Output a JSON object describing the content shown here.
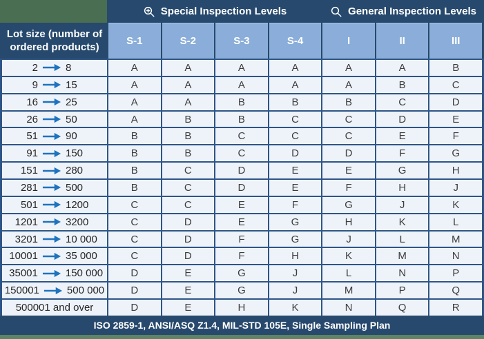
{
  "chart_data": {
    "type": "table",
    "section_headers": {
      "special": {
        "icon": "zoom-in-magnifier-icon",
        "label": "Special Inspection Levels"
      },
      "general": {
        "icon": "magnifier-icon",
        "label": "General Inspection Levels"
      }
    },
    "lot_column_header": "Lot size (number of ordered products)",
    "level_columns": [
      "S-1",
      "S-2",
      "S-3",
      "S-4",
      "I",
      "II",
      "III"
    ],
    "rows": [
      {
        "from": "2",
        "to": "8",
        "codes": [
          "A",
          "A",
          "A",
          "A",
          "A",
          "A",
          "B"
        ]
      },
      {
        "from": "9",
        "to": "15",
        "codes": [
          "A",
          "A",
          "A",
          "A",
          "A",
          "B",
          "C"
        ]
      },
      {
        "from": "16",
        "to": "25",
        "codes": [
          "A",
          "A",
          "B",
          "B",
          "B",
          "C",
          "D"
        ]
      },
      {
        "from": "26",
        "to": "50",
        "codes": [
          "A",
          "B",
          "B",
          "C",
          "C",
          "D",
          "E"
        ]
      },
      {
        "from": "51",
        "to": "90",
        "codes": [
          "B",
          "B",
          "C",
          "C",
          "C",
          "E",
          "F"
        ]
      },
      {
        "from": "91",
        "to": "150",
        "codes": [
          "B",
          "B",
          "C",
          "D",
          "D",
          "F",
          "G"
        ]
      },
      {
        "from": "151",
        "to": "280",
        "codes": [
          "B",
          "C",
          "D",
          "E",
          "E",
          "G",
          "H"
        ]
      },
      {
        "from": "281",
        "to": "500",
        "codes": [
          "B",
          "C",
          "D",
          "E",
          "F",
          "H",
          "J"
        ]
      },
      {
        "from": "501",
        "to": "1200",
        "codes": [
          "C",
          "C",
          "E",
          "F",
          "G",
          "J",
          "K"
        ]
      },
      {
        "from": "1201",
        "to": "3200",
        "codes": [
          "C",
          "D",
          "E",
          "G",
          "H",
          "K",
          "L"
        ]
      },
      {
        "from": "3201",
        "to": "10 000",
        "codes": [
          "C",
          "D",
          "F",
          "G",
          "J",
          "L",
          "M"
        ]
      },
      {
        "from": "10001",
        "to": "35 000",
        "codes": [
          "C",
          "D",
          "F",
          "H",
          "K",
          "M",
          "N"
        ]
      },
      {
        "from": "35001",
        "to": "150 000",
        "codes": [
          "D",
          "E",
          "G",
          "J",
          "L",
          "N",
          "P"
        ]
      },
      {
        "from": "150001",
        "to": "500 000",
        "codes": [
          "D",
          "E",
          "G",
          "J",
          "M",
          "P",
          "Q"
        ]
      },
      {
        "label": "500001 and over",
        "codes": [
          "D",
          "E",
          "H",
          "K",
          "N",
          "Q",
          "R"
        ]
      }
    ],
    "footer": "ISO 2859-1, ANSI/ASQ Z1.4, MIL-STD 105E, Single Sampling Plan"
  },
  "colors": {
    "navy": "#27496d",
    "grid_border": "#2e5586",
    "header_cell_blue": "#8aaed9",
    "body_bg": "#eef3fa",
    "arrow_blue": "#1e73be",
    "corner_green": "#4a6e52",
    "strip_green": "#5d8465",
    "letter_color": "#3c3c3c"
  }
}
